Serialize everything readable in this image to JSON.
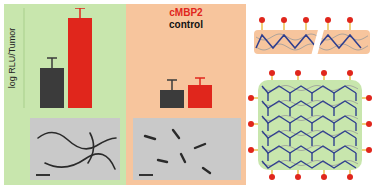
{
  "chart_data": {
    "type": "bar",
    "y_label": "log RLU/Tumor",
    "categories": [
      null,
      null
    ],
    "series": [
      {
        "name": "control",
        "color": "#3b3b3b",
        "values": [
          40,
          18
        ],
        "errors": [
          10,
          10
        ]
      },
      {
        "name": "cMBP2",
        "color": "#e0261c",
        "values": [
          90,
          23
        ],
        "errors": [
          10,
          7
        ]
      }
    ],
    "ylim": [
      0,
      100
    ],
    "tick_labels": false,
    "legend": "top-right"
  }
}
